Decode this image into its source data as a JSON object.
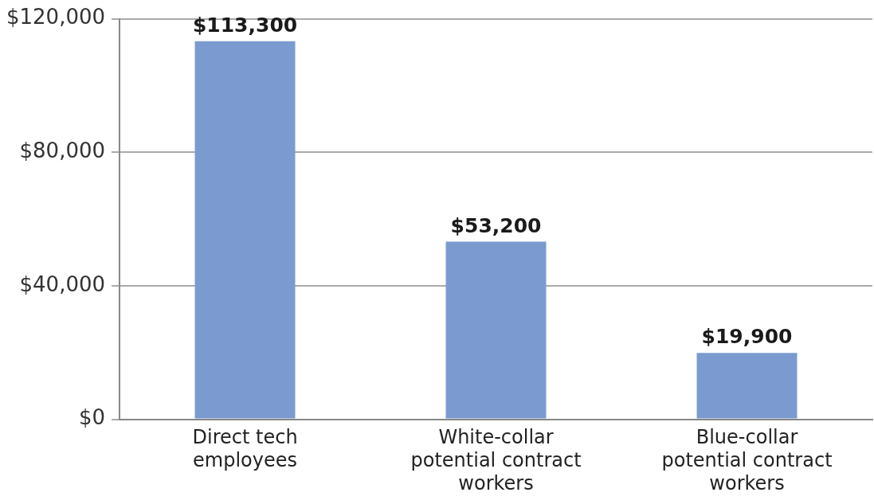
{
  "chart_data": {
    "type": "bar",
    "categories": [
      "Direct tech employees",
      "White-collar potential contract workers",
      "Blue-collar potential contract workers"
    ],
    "values": [
      113300,
      53200,
      19900
    ],
    "value_labels": [
      "$113,300",
      "$53,200",
      "$19,900"
    ],
    "color": "#7b9bd0",
    "ylim": [
      0,
      120000
    ],
    "yticks": [
      {
        "value": 0,
        "label": "$0"
      },
      {
        "value": 40000,
        "label": "$40,000"
      },
      {
        "value": 80000,
        "label": "$80,000"
      },
      {
        "value": 120000,
        "label": "$120,000"
      }
    ],
    "grid": "y",
    "legend": false
  }
}
